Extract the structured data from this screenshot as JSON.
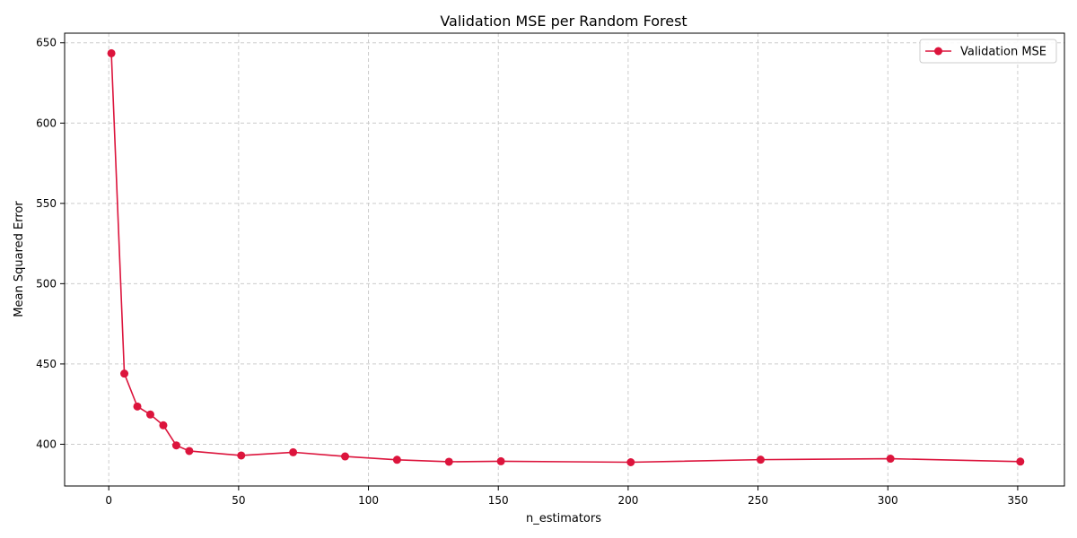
{
  "chart_data": {
    "type": "line",
    "title": "Validation MSE per Random Forest",
    "xlabel": "n_estimators",
    "ylabel": "Mean Squared Error",
    "xlim": [
      -17,
      368
    ],
    "ylim": [
      374,
      656
    ],
    "xticks": [
      0,
      50,
      100,
      150,
      200,
      250,
      300,
      350
    ],
    "yticks": [
      400,
      450,
      500,
      550,
      600,
      650
    ],
    "grid": true,
    "legend_position": "top-right",
    "series": [
      {
        "name": "Validation MSE",
        "color": "#dc143c",
        "x": [
          1,
          6,
          11,
          16,
          21,
          26,
          31,
          51,
          71,
          91,
          111,
          131,
          151,
          201,
          251,
          301,
          351
        ],
        "y": [
          643.5,
          444,
          423.5,
          418.5,
          411.8,
          399.3,
          395.8,
          393,
          395,
          392.4,
          390.3,
          389.1,
          389.4,
          388.8,
          390.4,
          391,
          389.2
        ]
      }
    ]
  }
}
